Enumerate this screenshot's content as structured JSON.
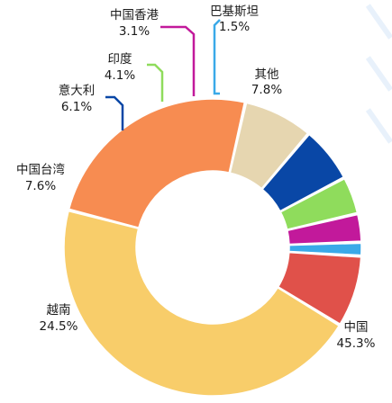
{
  "chart_data": {
    "type": "pie",
    "donut": true,
    "title": "",
    "slices": [
      {
        "name": "巴基斯坦",
        "value": 1.5,
        "label": "1.5%",
        "color": "#3aa9e8"
      },
      {
        "name": "其他",
        "value": 7.8,
        "label": "7.8%",
        "color": "#e0514a"
      },
      {
        "name": "中国",
        "value": 45.3,
        "label": "45.3%",
        "color": "#f8cd6a"
      },
      {
        "name": "越南",
        "value": 24.5,
        "label": "24.5%",
        "color": "#f78c51"
      },
      {
        "name": "中国台湾",
        "value": 7.6,
        "label": "7.6%",
        "color": "#e6d6b0"
      },
      {
        "name": "意大利",
        "value": 6.1,
        "label": "6.1%",
        "color": "#0947a6"
      },
      {
        "name": "印度",
        "value": 4.1,
        "label": "4.1%",
        "color": "#8fdc5c"
      },
      {
        "name": "中国香港",
        "value": 3.1,
        "label": "3.1%",
        "color": "#c2199b"
      }
    ]
  }
}
